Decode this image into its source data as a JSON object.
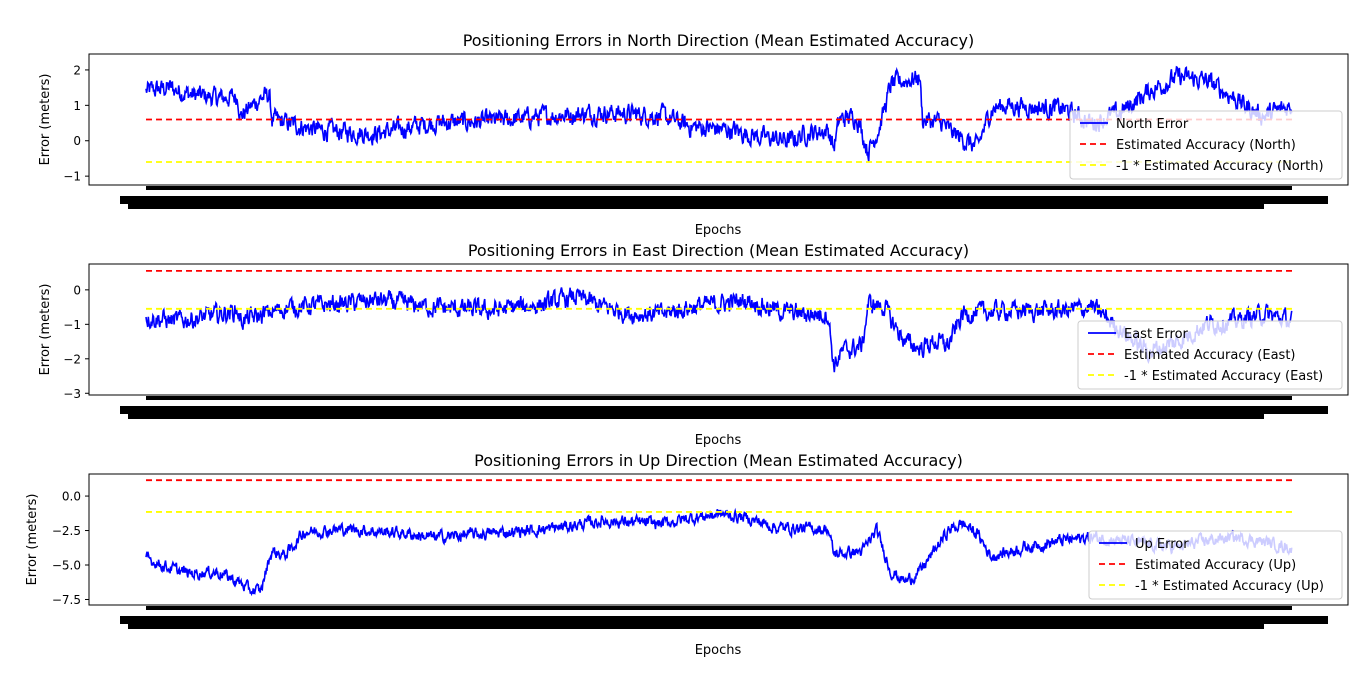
{
  "chart_data": [
    {
      "type": "line",
      "title": "Positioning Errors in North Direction (Mean Estimated Accuracy)",
      "xlabel": "Epochs",
      "ylabel": "Error (meters)",
      "yticks": [
        -1,
        0,
        1,
        2
      ],
      "ytick_labels": [
        "−1",
        "0",
        "1",
        "2"
      ],
      "ylim": [
        -1.25,
        2.45
      ],
      "x_count": 4000,
      "series": [
        {
          "name": "North Error",
          "color": "#0000ff",
          "style": "solid",
          "profile": [
            [
              0,
              1.4
            ],
            [
              80,
              1.5
            ],
            [
              160,
              1.3
            ],
            [
              260,
              1.2
            ],
            [
              320,
              1.25
            ],
            [
              330,
              0.7
            ],
            [
              400,
              1.2
            ],
            [
              430,
              1.3
            ],
            [
              440,
              0.6
            ],
            [
              600,
              0.3
            ],
            [
              800,
              0.2
            ],
            [
              1000,
              0.5
            ],
            [
              1200,
              0.55
            ],
            [
              1400,
              0.7
            ],
            [
              1600,
              0.8
            ],
            [
              1700,
              0.75
            ],
            [
              1800,
              0.7
            ],
            [
              1900,
              0.4
            ],
            [
              2040,
              0.3
            ],
            [
              2150,
              0.1
            ],
            [
              2250,
              0.0
            ],
            [
              2300,
              0.2
            ],
            [
              2380,
              0.3
            ],
            [
              2400,
              -0.2
            ],
            [
              2420,
              0.6
            ],
            [
              2480,
              0.7
            ],
            [
              2520,
              -0.3
            ],
            [
              2560,
              0.4
            ],
            [
              2600,
              1.6
            ],
            [
              2700,
              1.8
            ],
            [
              2710,
              0.6
            ],
            [
              2780,
              0.5
            ],
            [
              2800,
              0.3
            ],
            [
              2900,
              -0.2
            ],
            [
              2950,
              0.9
            ],
            [
              3000,
              1.0
            ],
            [
              3200,
              0.9
            ],
            [
              3300,
              0.5
            ],
            [
              3400,
              0.8
            ],
            [
              3500,
              1.4
            ],
            [
              3600,
              1.8
            ],
            [
              3700,
              1.7
            ],
            [
              3800,
              1.2
            ],
            [
              3850,
              0.9
            ],
            [
              3900,
              0.7
            ],
            [
              4000,
              1.0
            ]
          ],
          "noise": 0.22
        },
        {
          "name": "Estimated Accuracy (North)",
          "color": "#ff0000",
          "style": "dashed",
          "value": 0.6
        },
        {
          "name": "-1 * Estimated Accuracy (North)",
          "color": "#ffff00",
          "style": "dashed",
          "value": -0.6
        }
      ]
    },
    {
      "type": "line",
      "title": "Positioning Errors in East Direction (Mean Estimated Accuracy)",
      "xlabel": "Epochs",
      "ylabel": "Error (meters)",
      "yticks": [
        -3,
        -2,
        -1,
        0
      ],
      "ytick_labels": [
        "−3",
        "−2",
        "−1",
        "0"
      ],
      "ylim": [
        -3.05,
        0.75
      ],
      "x_count": 4000,
      "series": [
        {
          "name": "East Error",
          "color": "#0000ff",
          "style": "solid",
          "profile": [
            [
              0,
              -0.8
            ],
            [
              100,
              -0.9
            ],
            [
              200,
              -0.8
            ],
            [
              320,
              -0.6
            ],
            [
              330,
              -0.9
            ],
            [
              420,
              -0.7
            ],
            [
              500,
              -0.5
            ],
            [
              700,
              -0.4
            ],
            [
              800,
              -0.3
            ],
            [
              900,
              -0.4
            ],
            [
              1000,
              -0.5
            ],
            [
              1200,
              -0.6
            ],
            [
              1400,
              -0.4
            ],
            [
              1500,
              -0.2
            ],
            [
              1600,
              -0.5
            ],
            [
              1700,
              -0.7
            ],
            [
              1800,
              -0.7
            ],
            [
              1900,
              -0.5
            ],
            [
              2000,
              -0.4
            ],
            [
              2100,
              -0.3
            ],
            [
              2200,
              -0.6
            ],
            [
              2300,
              -0.7
            ],
            [
              2380,
              -0.7
            ],
            [
              2400,
              -2.2
            ],
            [
              2430,
              -1.8
            ],
            [
              2500,
              -1.6
            ],
            [
              2520,
              -0.4
            ],
            [
              2580,
              -0.5
            ],
            [
              2600,
              -0.9
            ],
            [
              2650,
              -1.5
            ],
            [
              2700,
              -1.7
            ],
            [
              2750,
              -1.5
            ],
            [
              2800,
              -1.6
            ],
            [
              2850,
              -0.7
            ],
            [
              3000,
              -0.6
            ],
            [
              3200,
              -0.6
            ],
            [
              3300,
              -0.5
            ],
            [
              3350,
              -0.8
            ],
            [
              3450,
              -1.5
            ],
            [
              3500,
              -1.8
            ],
            [
              3600,
              -1.5
            ],
            [
              3700,
              -1.0
            ],
            [
              3800,
              -0.9
            ],
            [
              3900,
              -0.7
            ],
            [
              4000,
              -0.9
            ]
          ],
          "noise": 0.22
        },
        {
          "name": "Estimated Accuracy (East)",
          "color": "#ff0000",
          "style": "dashed",
          "value": 0.55
        },
        {
          "name": "-1 * Estimated Accuracy (East)",
          "color": "#ffff00",
          "style": "dashed",
          "value": -0.55
        }
      ]
    },
    {
      "type": "line",
      "title": "Positioning Errors in Up Direction (Mean Estimated Accuracy)",
      "xlabel": "Epochs",
      "ylabel": "Error (meters)",
      "yticks": [
        -7.5,
        -5.0,
        -2.5,
        0.0
      ],
      "ytick_labels": [
        "−7.5",
        "−5.0",
        "−2.5",
        "0.0"
      ],
      "ylim": [
        -7.9,
        1.6
      ],
      "x_count": 4000,
      "series": [
        {
          "name": "Up Error",
          "color": "#0000ff",
          "style": "solid",
          "profile": [
            [
              0,
              -4.5
            ],
            [
              80,
              -5.2
            ],
            [
              150,
              -5.6
            ],
            [
              250,
              -5.5
            ],
            [
              330,
              -6.3
            ],
            [
              360,
              -6.8
            ],
            [
              400,
              -6.9
            ],
            [
              430,
              -4.6
            ],
            [
              440,
              -4.0
            ],
            [
              480,
              -4.3
            ],
            [
              500,
              -4.0
            ],
            [
              550,
              -2.6
            ],
            [
              700,
              -2.4
            ],
            [
              900,
              -2.7
            ],
            [
              1000,
              -3.0
            ],
            [
              1200,
              -2.7
            ],
            [
              1400,
              -2.4
            ],
            [
              1600,
              -1.8
            ],
            [
              1800,
              -2.0
            ],
            [
              1900,
              -1.6
            ],
            [
              2000,
              -1.3
            ],
            [
              2100,
              -1.6
            ],
            [
              2200,
              -2.3
            ],
            [
              2380,
              -2.4
            ],
            [
              2400,
              -4.2
            ],
            [
              2500,
              -4.0
            ],
            [
              2550,
              -2.5
            ],
            [
              2600,
              -5.5
            ],
            [
              2650,
              -6.2
            ],
            [
              2700,
              -5.5
            ],
            [
              2800,
              -2.5
            ],
            [
              2850,
              -2.0
            ],
            [
              2900,
              -2.7
            ],
            [
              2950,
              -4.4
            ],
            [
              3050,
              -3.8
            ],
            [
              3200,
              -3.2
            ],
            [
              3300,
              -3.0
            ],
            [
              3400,
              -3.2
            ],
            [
              3500,
              -3.5
            ],
            [
              3600,
              -3.7
            ],
            [
              3700,
              -3.2
            ],
            [
              3800,
              -3.0
            ],
            [
              3900,
              -3.3
            ],
            [
              4000,
              -3.8
            ]
          ],
          "noise": 0.35
        },
        {
          "name": "Estimated Accuracy (Up)",
          "color": "#ff0000",
          "style": "dashed",
          "value": 1.15
        },
        {
          "name": "-1 * Estimated Accuracy (Up)",
          "color": "#ffff00",
          "style": "dashed",
          "value": -1.15
        }
      ]
    }
  ]
}
